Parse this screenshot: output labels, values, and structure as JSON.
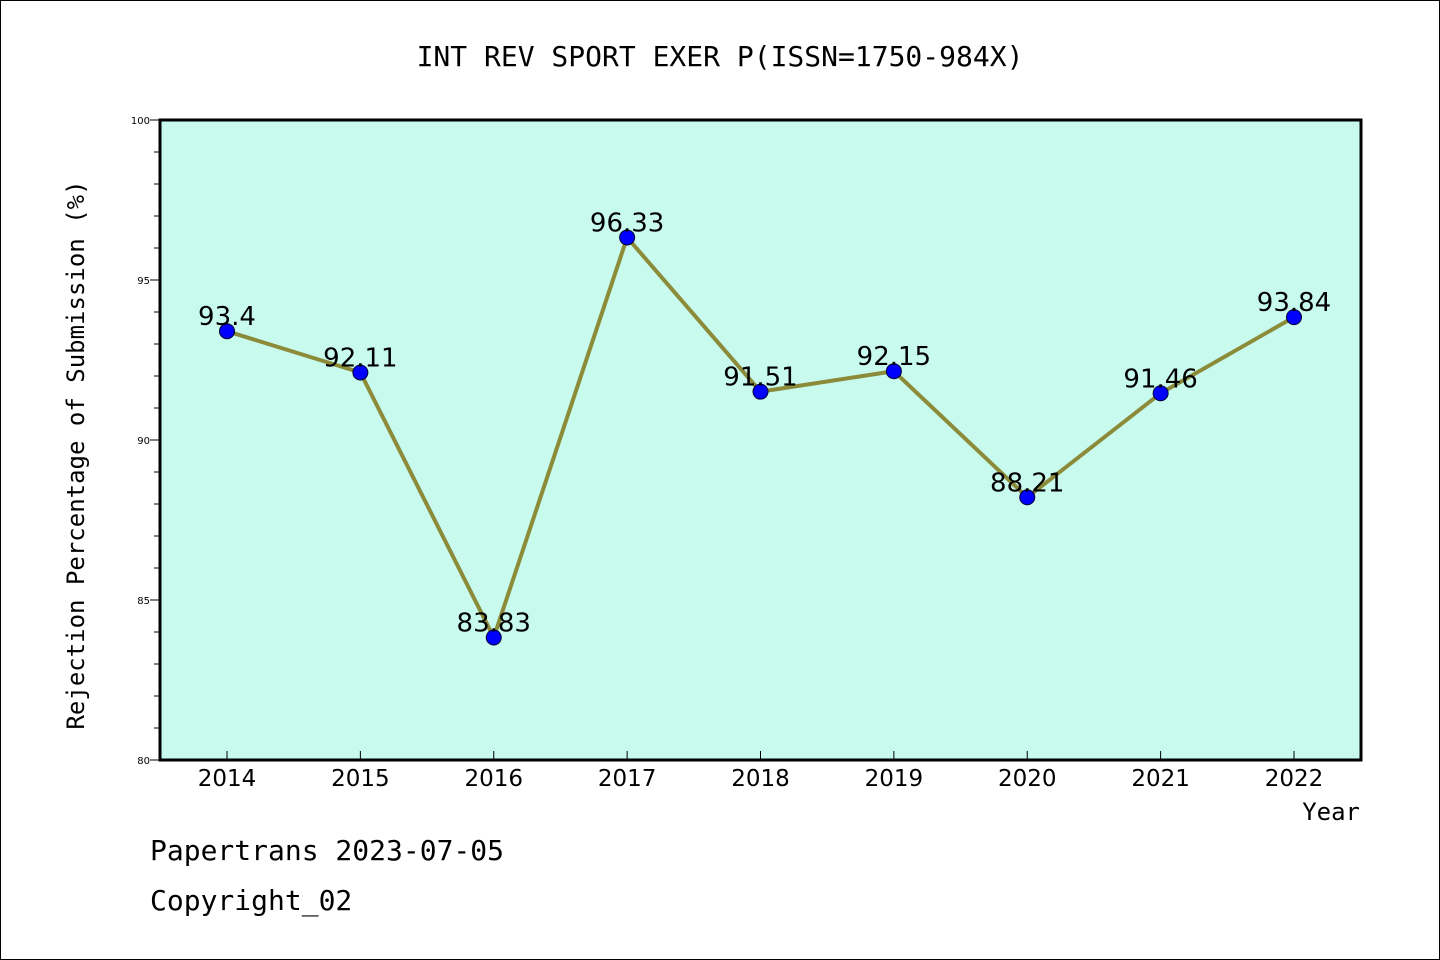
{
  "chart_data": {
    "type": "line",
    "title": "INT REV SPORT EXER P(ISSN=1750-984X)",
    "xlabel": "Year",
    "ylabel": "Rejection Percentage of Submission (%)",
    "categories": [
      "2014",
      "2015",
      "2016",
      "2017",
      "2018",
      "2019",
      "2020",
      "2021",
      "2022"
    ],
    "series": [
      {
        "values": [
          93.4,
          92.11,
          83.83,
          96.33,
          91.51,
          92.15,
          88.21,
          91.46,
          93.84
        ]
      }
    ],
    "data_labels": [
      "93.4",
      "92.11",
      "83.83",
      "96.33",
      "91.51",
      "92.15",
      "88.21",
      "91.46",
      "93.84"
    ],
    "ylim": [
      80,
      100
    ],
    "yticks": [
      "80",
      "85",
      "90",
      "95",
      "100"
    ],
    "grid": false,
    "colors": {
      "plot_background": "#c8fbee",
      "line": "#8b8b3a",
      "marker": "#0000ff"
    }
  },
  "footer": {
    "line1": "Papertrans 2023-07-05",
    "line2": "Copyright_02"
  }
}
